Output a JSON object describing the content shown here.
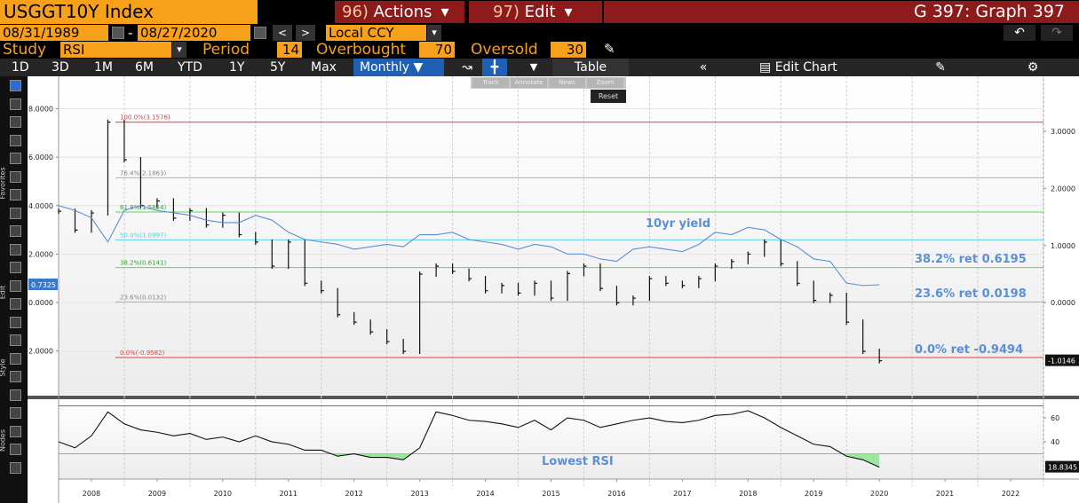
{
  "header": {
    "ticker": "USGGT10Y Index",
    "actions_num": "96)",
    "actions": "Actions",
    "edit_num": "97)",
    "edit": "Edit",
    "graph": "G 397: Graph 397"
  },
  "dates": {
    "start": "08/31/1989",
    "end": "08/27/2020",
    "currency": "Local CCY"
  },
  "study": {
    "label": "Study",
    "value": "RSI",
    "period_label": "Period",
    "period": 14,
    "overbought_label": "Overbought",
    "overbought": 70,
    "oversold_label": "Oversold",
    "oversold": 30
  },
  "toolbar": {
    "ranges": [
      "1D",
      "3D",
      "1M",
      "6M",
      "YTD",
      "1Y",
      "5Y",
      "Max"
    ],
    "frequency": "Monthly",
    "table": "Table",
    "edit_chart": "Edit Chart"
  },
  "popup": {
    "items": [
      "Track",
      "Annotate",
      "News",
      "Zoom"
    ],
    "reset": "Reset"
  },
  "sidebar": [
    "Favorites",
    "Edit",
    "Style",
    "Nodes"
  ],
  "chart_data": [
    {
      "type": "line",
      "x": [
        2008,
        2008.25,
        2008.5,
        2008.75,
        2009,
        2009.25,
        2009.5,
        2009.75,
        2010,
        2010.25,
        2010.5,
        2010.75,
        2011,
        2011.25,
        2011.5,
        2011.75,
        2012,
        2012.25,
        2012.5,
        2012.75,
        2013,
        2013.25,
        2013.5,
        2013.75,
        2014,
        2014.25,
        2014.5,
        2014.75,
        2015,
        2015.25,
        2015.5,
        2015.75,
        2016,
        2016.25,
        2016.5,
        2016.75,
        2017,
        2017.25,
        2017.5,
        2017.75,
        2018,
        2018.25,
        2018.5,
        2018.75,
        2019,
        2019.25,
        2019.5,
        2019.75,
        2020,
        2020.25,
        2020.5
      ],
      "xlim": [
        2008,
        2023
      ],
      "xticks": [
        {
          "value": 2008.5,
          "label": "2008"
        },
        {
          "value": 2009.5,
          "label": "2009"
        },
        {
          "value": 2010.5,
          "label": "2010"
        },
        {
          "value": 2011.5,
          "label": "2011"
        },
        {
          "value": 2012.5,
          "label": "2012"
        },
        {
          "value": 2013.5,
          "label": "2013"
        },
        {
          "value": 2014.5,
          "label": "2014"
        },
        {
          "value": 2015.5,
          "label": "2015"
        },
        {
          "value": 2016.5,
          "label": "2016"
        },
        {
          "value": 2017.5,
          "label": "2017"
        },
        {
          "value": 2018.5,
          "label": "2018"
        },
        {
          "value": 2019.5,
          "label": "2019"
        },
        {
          "value": 2020.5,
          "label": "2020"
        },
        {
          "value": 2021.5,
          "label": "2021"
        },
        {
          "value": 2022.5,
          "label": "2022"
        }
      ],
      "ylim": [
        -3.81,
        9.34
      ],
      "yticks": [
        {
          "value": -2,
          "label": "-2.0000"
        },
        {
          "value": 0,
          "label": "0.0000"
        },
        {
          "value": 2,
          "label": "2.0000"
        },
        {
          "value": 4,
          "label": "4.0000"
        },
        {
          "value": 6,
          "label": "6.0000"
        },
        {
          "value": 8,
          "label": "8.0000"
        }
      ],
      "y2lim": [
        -1.61,
        3.96
      ],
      "y2ticks": [
        {
          "value": 0,
          "label": "0.0000"
        },
        {
          "value": 1,
          "label": "1.0000"
        },
        {
          "value": 2,
          "label": "2.0000"
        },
        {
          "value": 3,
          "label": "3.0000"
        }
      ],
      "grid": true,
      "series": [
        {
          "color": "#111111",
          "axis": "y2",
          "style": "bars",
          "values": [
            1.6,
            1.27,
            1.57,
            3.1576,
            2.5,
            1.7,
            1.78,
            1.48,
            1.61,
            1.36,
            1.53,
            1.19,
            1.06,
            0.64,
            1.06,
            0.34,
            0.21,
            -0.21,
            -0.34,
            -0.51,
            -0.68,
            -0.85,
            0.5,
            0.64,
            0.55,
            0.42,
            0.21,
            0.3,
            0.17,
            0.34,
            0.08,
            0.51,
            0.64,
            0.25,
            0.0,
            0.08,
            0.42,
            0.34,
            0.3,
            0.42,
            0.64,
            0.72,
            0.85,
            1.06,
            0.68,
            0.34,
            0.04,
            0.13,
            -0.34,
            -0.85,
            -1.0146
          ]
        },
        {
          "name": "10yr yield",
          "color": "#5b8fd6",
          "style": "line",
          "values": [
            4.0,
            3.8,
            3.5,
            2.5,
            3.8,
            4.0,
            3.8,
            3.7,
            3.6,
            3.4,
            3.3,
            3.3,
            3.6,
            3.4,
            2.9,
            2.6,
            2.5,
            2.4,
            2.2,
            2.3,
            2.4,
            2.3,
            2.8,
            2.8,
            2.9,
            2.6,
            2.5,
            2.4,
            2.2,
            2.4,
            2.3,
            2.0,
            2.0,
            1.8,
            1.7,
            2.2,
            2.3,
            2.2,
            2.1,
            2.4,
            2.9,
            2.8,
            3.1,
            3.0,
            2.6,
            2.3,
            1.8,
            1.7,
            0.8,
            0.7,
            0.7325
          ]
        }
      ],
      "hlines": [
        {
          "value": 3.1576,
          "label": "100.0%(3.1576)",
          "color": "#e04040"
        },
        {
          "value": 2.1863,
          "label": "76.4%(2.1863)",
          "color": "#b0b0b0"
        },
        {
          "value": 1.5854,
          "label": "61.8%(1.5854)",
          "color": "#5cd65c"
        },
        {
          "value": 1.0997,
          "label": "50.0%(1.0997)",
          "color": "#5ad0e8"
        },
        {
          "value": 0.6141,
          "label": "38.2%(0.6141)",
          "color": "#5cd65c"
        },
        {
          "value": 0.0132,
          "label": "23.6%(0.0132)",
          "color": "#b0b0b0"
        },
        {
          "value": -0.9582,
          "label": "0.0%(-0.9582)",
          "color": "#e04040"
        }
      ],
      "annotations": [
        "38.2% ret 0.6195",
        "23.6% ret 0.0198",
        "0.0% ret -0.9494"
      ]
    },
    {
      "type": "line",
      "x": [
        2008,
        2008.25,
        2008.5,
        2008.75,
        2009,
        2009.25,
        2009.5,
        2009.75,
        2010,
        2010.25,
        2010.5,
        2010.75,
        2011,
        2011.25,
        2011.5,
        2011.75,
        2012,
        2012.25,
        2012.5,
        2012.75,
        2013,
        2013.25,
        2013.5,
        2013.75,
        2014,
        2014.25,
        2014.5,
        2014.75,
        2015,
        2015.25,
        2015.5,
        2015.75,
        2016,
        2016.25,
        2016.5,
        2016.75,
        2017,
        2017.25,
        2017.5,
        2017.75,
        2018,
        2018.25,
        2018.5,
        2018.75,
        2019,
        2019.25,
        2019.5,
        2019.75,
        2020,
        2020.25,
        2020.5
      ],
      "xlim": [
        2008,
        2023
      ],
      "ylim": [
        8.9,
        75.6
      ],
      "yticks": [
        40,
        60
      ],
      "series": [
        {
          "color": "#111111",
          "values": [
            40,
            35,
            45,
            65,
            55,
            50,
            48,
            45,
            47,
            42,
            44,
            40,
            45,
            40,
            38,
            33,
            33,
            28,
            30,
            27,
            27,
            25,
            35,
            65,
            62,
            58,
            57,
            55,
            52,
            58,
            50,
            60,
            58,
            52,
            55,
            58,
            60,
            57,
            56,
            58,
            62,
            63,
            66,
            60,
            52,
            45,
            38,
            36,
            28,
            25,
            18.8345
          ]
        }
      ],
      "annotations": [
        "Lowest RSI"
      ]
    }
  ]
}
